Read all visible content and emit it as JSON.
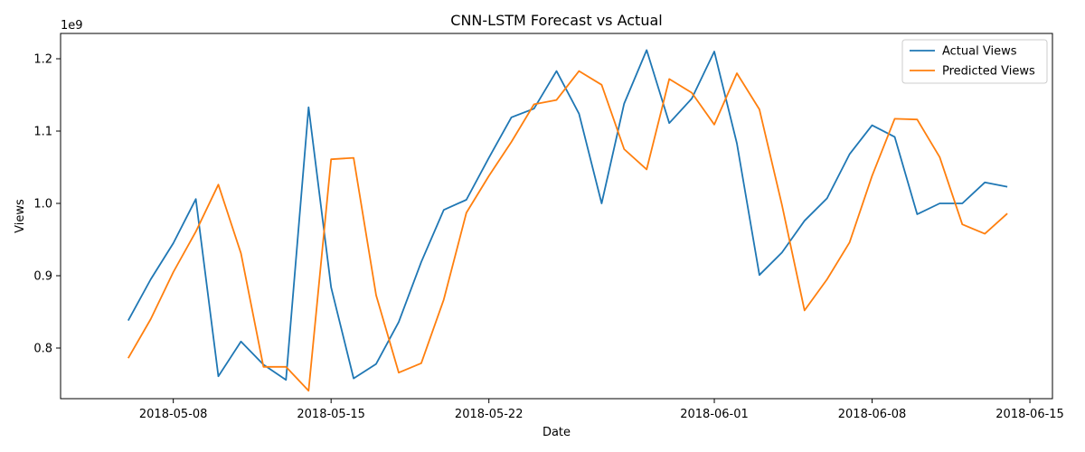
{
  "chart_data": {
    "type": "line",
    "title": "CNN-LSTM Forecast vs Actual",
    "xlabel": "Date",
    "ylabel": "Views",
    "offset_label": "1e9",
    "scale": 1000000000,
    "xlim": [
      "2018-05-03",
      "2018-06-16"
    ],
    "ylim": [
      0.73,
      1.235
    ],
    "x_ticks": [
      "2018-05-08",
      "2018-05-15",
      "2018-05-22",
      "2018-06-01",
      "2018-06-08",
      "2018-06-15"
    ],
    "y_ticks": [
      0.8,
      0.9,
      1.0,
      1.1,
      1.2
    ],
    "y_tick_labels": [
      "0.8",
      "0.9",
      "1.0",
      "1.1",
      "1.2"
    ],
    "grid": false,
    "legend_position": "top-right",
    "x": [
      "2018-05-06",
      "2018-05-07",
      "2018-05-08",
      "2018-05-09",
      "2018-05-10",
      "2018-05-11",
      "2018-05-12",
      "2018-05-13",
      "2018-05-14",
      "2018-05-15",
      "2018-05-16",
      "2018-05-17",
      "2018-05-18",
      "2018-05-19",
      "2018-05-20",
      "2018-05-21",
      "2018-05-22",
      "2018-05-23",
      "2018-05-24",
      "2018-05-25",
      "2018-05-26",
      "2018-05-27",
      "2018-05-28",
      "2018-05-29",
      "2018-05-30",
      "2018-05-31",
      "2018-06-01",
      "2018-06-02",
      "2018-06-03",
      "2018-06-04",
      "2018-06-05",
      "2018-06-06",
      "2018-06-07",
      "2018-06-08",
      "2018-06-09",
      "2018-06-10",
      "2018-06-11",
      "2018-06-12",
      "2018-06-13",
      "2018-06-14"
    ],
    "series": [
      {
        "name": "Actual Views",
        "color": "#1f77b4",
        "values": [
          0.838,
          0.895,
          0.945,
          1.006,
          0.761,
          0.809,
          0.777,
          0.756,
          1.133,
          0.884,
          0.758,
          0.778,
          0.836,
          0.919,
          0.991,
          1.005,
          1.063,
          1.119,
          1.131,
          1.183,
          1.124,
          1.0,
          1.138,
          1.212,
          1.111,
          1.145,
          1.21,
          1.083,
          0.901,
          0.932,
          0.976,
          1.007,
          1.068,
          1.108,
          1.092,
          0.985,
          1.0,
          1.0,
          1.029,
          1.023
        ]
      },
      {
        "name": "Predicted Views",
        "color": "#ff7f0e",
        "values": [
          0.786,
          0.84,
          0.905,
          0.961,
          1.026,
          0.931,
          0.774,
          0.774,
          0.741,
          1.061,
          1.063,
          0.873,
          0.766,
          0.779,
          0.867,
          0.987,
          1.038,
          1.085,
          1.137,
          1.143,
          1.183,
          1.164,
          1.075,
          1.047,
          1.172,
          1.153,
          1.109,
          1.18,
          1.13,
          0.998,
          0.852,
          0.895,
          0.946,
          1.038,
          1.117,
          1.116,
          1.064,
          0.971,
          0.958,
          0.986
        ]
      }
    ]
  }
}
